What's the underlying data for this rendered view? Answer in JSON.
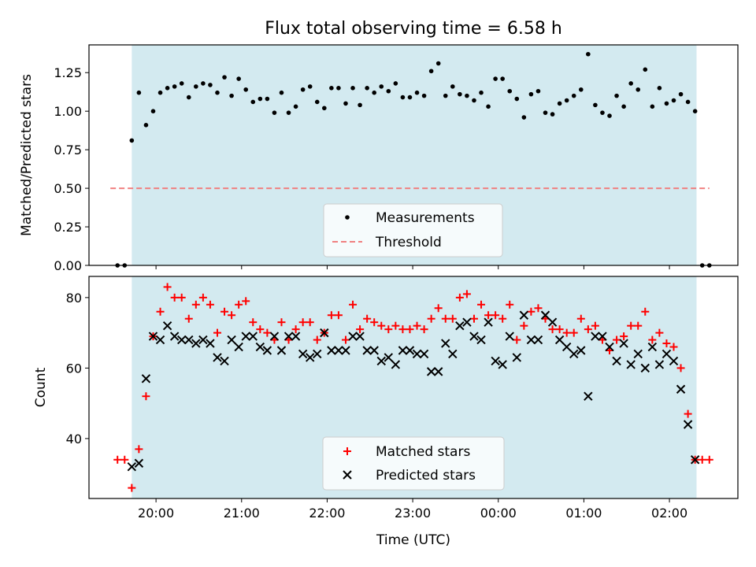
{
  "chart_data": [
    {
      "type": "scatter",
      "title": "Flux total observing time = 6.58 h",
      "xlabel": "",
      "ylabel": "Matched/Predicted stars",
      "ylim": [
        0,
        1.43
      ],
      "yticks": [
        "0.00",
        "0.25",
        "0.50",
        "0.75",
        "1.00",
        "1.25"
      ],
      "ytick_values": [
        0,
        0.25,
        0.5,
        0.75,
        1.0,
        1.25
      ],
      "shaded_region": {
        "start": "19:43",
        "end": "02:19",
        "color": "#d3eaf0"
      },
      "threshold": {
        "name": "Threshold",
        "value": 0.5,
        "x_start": "19:28",
        "x_end": "02:28",
        "color": "#f08080"
      },
      "series": [
        {
          "name": "Measurements",
          "color": "#000000",
          "marker": "dot",
          "points": [
            [
              "19:33",
              0.0
            ],
            [
              "19:38",
              0.0
            ],
            [
              "19:43",
              0.81
            ],
            [
              "19:48",
              1.12
            ],
            [
              "19:53",
              0.91
            ],
            [
              "19:58",
              1.0
            ],
            [
              "20:03",
              1.12
            ],
            [
              "20:08",
              1.15
            ],
            [
              "20:13",
              1.16
            ],
            [
              "20:18",
              1.18
            ],
            [
              "20:23",
              1.09
            ],
            [
              "20:28",
              1.16
            ],
            [
              "20:33",
              1.18
            ],
            [
              "20:38",
              1.17
            ],
            [
              "20:43",
              1.12
            ],
            [
              "20:48",
              1.22
            ],
            [
              "20:53",
              1.1
            ],
            [
              "20:58",
              1.21
            ],
            [
              "21:03",
              1.14
            ],
            [
              "21:08",
              1.06
            ],
            [
              "21:13",
              1.08
            ],
            [
              "21:18",
              1.08
            ],
            [
              "21:23",
              0.99
            ],
            [
              "21:28",
              1.12
            ],
            [
              "21:33",
              0.99
            ],
            [
              "21:38",
              1.03
            ],
            [
              "21:43",
              1.14
            ],
            [
              "21:48",
              1.16
            ],
            [
              "21:53",
              1.06
            ],
            [
              "21:58",
              1.02
            ],
            [
              "22:03",
              1.15
            ],
            [
              "22:08",
              1.15
            ],
            [
              "22:13",
              1.05
            ],
            [
              "22:18",
              1.15
            ],
            [
              "22:23",
              1.04
            ],
            [
              "22:28",
              1.15
            ],
            [
              "22:33",
              1.12
            ],
            [
              "22:38",
              1.16
            ],
            [
              "22:43",
              1.13
            ],
            [
              "22:48",
              1.18
            ],
            [
              "22:53",
              1.09
            ],
            [
              "22:58",
              1.09
            ],
            [
              "23:03",
              1.12
            ],
            [
              "23:08",
              1.1
            ],
            [
              "23:13",
              1.26
            ],
            [
              "23:18",
              1.31
            ],
            [
              "23:23",
              1.1
            ],
            [
              "23:28",
              1.16
            ],
            [
              "23:33",
              1.11
            ],
            [
              "23:38",
              1.1
            ],
            [
              "23:43",
              1.07
            ],
            [
              "23:48",
              1.12
            ],
            [
              "23:53",
              1.03
            ],
            [
              "23:58",
              1.21
            ],
            [
              "00:03",
              1.21
            ],
            [
              "00:08",
              1.13
            ],
            [
              "00:13",
              1.08
            ],
            [
              "00:18",
              0.96
            ],
            [
              "00:23",
              1.11
            ],
            [
              "00:28",
              1.13
            ],
            [
              "00:33",
              0.99
            ],
            [
              "00:38",
              0.98
            ],
            [
              "00:43",
              1.05
            ],
            [
              "00:48",
              1.07
            ],
            [
              "00:53",
              1.1
            ],
            [
              "00:58",
              1.14
            ],
            [
              "01:03",
              1.37
            ],
            [
              "01:08",
              1.04
            ],
            [
              "01:13",
              0.99
            ],
            [
              "01:18",
              0.97
            ],
            [
              "01:23",
              1.1
            ],
            [
              "01:28",
              1.03
            ],
            [
              "01:33",
              1.18
            ],
            [
              "01:38",
              1.14
            ],
            [
              "01:43",
              1.27
            ],
            [
              "01:48",
              1.03
            ],
            [
              "01:53",
              1.15
            ],
            [
              "01:58",
              1.05
            ],
            [
              "02:03",
              1.07
            ],
            [
              "02:08",
              1.11
            ],
            [
              "02:13",
              1.06
            ],
            [
              "02:18",
              1.0
            ],
            [
              "02:23",
              0.0
            ],
            [
              "02:28",
              0.0
            ]
          ]
        }
      ],
      "legend": {
        "position": "bottom-center",
        "entries": [
          "Measurements",
          "Threshold"
        ]
      }
    },
    {
      "type": "scatter",
      "title": "",
      "xlabel": "Time (UTC)",
      "ylabel": "Count",
      "ylim": [
        23,
        86
      ],
      "yticks": [
        "40",
        "60",
        "80"
      ],
      "ytick_values": [
        40,
        60,
        80
      ],
      "xticks": [
        "20:00",
        "21:00",
        "22:00",
        "23:00",
        "00:00",
        "01:00",
        "02:00"
      ],
      "xtick_values": [
        "20:00",
        "21:00",
        "22:00",
        "23:00",
        "00:00",
        "01:00",
        "02:00"
      ],
      "xlim": [
        "19:13",
        "02:48"
      ],
      "shaded_region": {
        "start": "19:43",
        "end": "02:19",
        "color": "#d3eaf0"
      },
      "series": [
        {
          "name": "Matched stars",
          "color": "#ff0000",
          "marker": "plus",
          "points": [
            [
              "19:33",
              34
            ],
            [
              "19:38",
              34
            ],
            [
              "19:43",
              26
            ],
            [
              "19:48",
              37
            ],
            [
              "19:53",
              52
            ],
            [
              "19:58",
              69
            ],
            [
              "20:03",
              76
            ],
            [
              "20:08",
              83
            ],
            [
              "20:13",
              80
            ],
            [
              "20:18",
              80
            ],
            [
              "20:23",
              74
            ],
            [
              "20:28",
              78
            ],
            [
              "20:33",
              80
            ],
            [
              "20:38",
              78
            ],
            [
              "20:43",
              70
            ],
            [
              "20:48",
              76
            ],
            [
              "20:53",
              75
            ],
            [
              "20:58",
              78
            ],
            [
              "21:03",
              79
            ],
            [
              "21:08",
              73
            ],
            [
              "21:13",
              71
            ],
            [
              "21:18",
              70
            ],
            [
              "21:23",
              68
            ],
            [
              "21:28",
              73
            ],
            [
              "21:33",
              68
            ],
            [
              "21:38",
              71
            ],
            [
              "21:43",
              73
            ],
            [
              "21:48",
              73
            ],
            [
              "21:53",
              68
            ],
            [
              "21:58",
              70
            ],
            [
              "22:03",
              75
            ],
            [
              "22:08",
              75
            ],
            [
              "22:13",
              68
            ],
            [
              "22:18",
              78
            ],
            [
              "22:23",
              71
            ],
            [
              "22:28",
              74
            ],
            [
              "22:33",
              73
            ],
            [
              "22:38",
              72
            ],
            [
              "22:43",
              71
            ],
            [
              "22:48",
              72
            ],
            [
              "22:53",
              71
            ],
            [
              "22:58",
              71
            ],
            [
              "23:03",
              72
            ],
            [
              "23:08",
              71
            ],
            [
              "23:13",
              74
            ],
            [
              "23:18",
              77
            ],
            [
              "23:23",
              74
            ],
            [
              "23:28",
              74
            ],
            [
              "23:33",
              80
            ],
            [
              "23:38",
              81
            ],
            [
              "23:43",
              74
            ],
            [
              "23:48",
              78
            ],
            [
              "23:53",
              75
            ],
            [
              "23:58",
              75
            ],
            [
              "00:03",
              74
            ],
            [
              "00:08",
              78
            ],
            [
              "00:13",
              68
            ],
            [
              "00:18",
              72
            ],
            [
              "00:23",
              76
            ],
            [
              "00:28",
              77
            ],
            [
              "00:33",
              74
            ],
            [
              "00:38",
              71
            ],
            [
              "00:43",
              71
            ],
            [
              "00:48",
              70
            ],
            [
              "00:53",
              70
            ],
            [
              "00:58",
              74
            ],
            [
              "01:03",
              71
            ],
            [
              "01:08",
              72
            ],
            [
              "01:13",
              68
            ],
            [
              "01:18",
              65
            ],
            [
              "01:23",
              68
            ],
            [
              "01:28",
              69
            ],
            [
              "01:33",
              72
            ],
            [
              "01:38",
              72
            ],
            [
              "01:43",
              76
            ],
            [
              "01:48",
              68
            ],
            [
              "01:53",
              70
            ],
            [
              "01:58",
              67
            ],
            [
              "02:03",
              66
            ],
            [
              "02:08",
              60
            ],
            [
              "02:13",
              47
            ],
            [
              "02:18",
              34
            ],
            [
              "02:23",
              34
            ],
            [
              "02:28",
              34
            ]
          ]
        },
        {
          "name": "Predicted stars",
          "color": "#000000",
          "marker": "x",
          "points": [
            [
              "19:43",
              32
            ],
            [
              "19:48",
              33
            ],
            [
              "19:53",
              57
            ],
            [
              "19:58",
              69
            ],
            [
              "20:03",
              68
            ],
            [
              "20:08",
              72
            ],
            [
              "20:13",
              69
            ],
            [
              "20:18",
              68
            ],
            [
              "20:23",
              68
            ],
            [
              "20:28",
              67
            ],
            [
              "20:33",
              68
            ],
            [
              "20:38",
              67
            ],
            [
              "20:43",
              63
            ],
            [
              "20:48",
              62
            ],
            [
              "20:53",
              68
            ],
            [
              "20:58",
              66
            ],
            [
              "21:03",
              69
            ],
            [
              "21:08",
              69
            ],
            [
              "21:13",
              66
            ],
            [
              "21:18",
              65
            ],
            [
              "21:23",
              69
            ],
            [
              "21:28",
              65
            ],
            [
              "21:33",
              69
            ],
            [
              "21:38",
              69
            ],
            [
              "21:43",
              64
            ],
            [
              "21:48",
              63
            ],
            [
              "21:53",
              64
            ],
            [
              "21:58",
              70
            ],
            [
              "22:03",
              65
            ],
            [
              "22:08",
              65
            ],
            [
              "22:13",
              65
            ],
            [
              "22:18",
              69
            ],
            [
              "22:23",
              69
            ],
            [
              "22:28",
              65
            ],
            [
              "22:33",
              65
            ],
            [
              "22:38",
              62
            ],
            [
              "22:43",
              63
            ],
            [
              "22:48",
              61
            ],
            [
              "22:53",
              65
            ],
            [
              "22:58",
              65
            ],
            [
              "23:03",
              64
            ],
            [
              "23:08",
              64
            ],
            [
              "23:13",
              59
            ],
            [
              "23:18",
              59
            ],
            [
              "23:23",
              67
            ],
            [
              "23:28",
              64
            ],
            [
              "23:33",
              72
            ],
            [
              "23:38",
              73
            ],
            [
              "23:43",
              69
            ],
            [
              "23:48",
              68
            ],
            [
              "23:53",
              73
            ],
            [
              "23:58",
              62
            ],
            [
              "00:03",
              61
            ],
            [
              "00:08",
              69
            ],
            [
              "00:13",
              63
            ],
            [
              "00:18",
              75
            ],
            [
              "00:23",
              68
            ],
            [
              "00:28",
              68
            ],
            [
              "00:33",
              75
            ],
            [
              "00:38",
              73
            ],
            [
              "00:43",
              68
            ],
            [
              "00:48",
              66
            ],
            [
              "00:53",
              64
            ],
            [
              "00:58",
              65
            ],
            [
              "01:03",
              52
            ],
            [
              "01:08",
              69
            ],
            [
              "01:13",
              69
            ],
            [
              "01:18",
              66
            ],
            [
              "01:23",
              62
            ],
            [
              "01:28",
              67
            ],
            [
              "01:33",
              61
            ],
            [
              "01:38",
              64
            ],
            [
              "01:43",
              60
            ],
            [
              "01:48",
              66
            ],
            [
              "01:53",
              61
            ],
            [
              "01:58",
              64
            ],
            [
              "02:03",
              62
            ],
            [
              "02:08",
              54
            ],
            [
              "02:13",
              44
            ],
            [
              "02:18",
              34
            ]
          ]
        }
      ],
      "legend": {
        "position": "bottom-center",
        "entries": [
          "Matched stars",
          "Predicted stars"
        ]
      }
    }
  ]
}
